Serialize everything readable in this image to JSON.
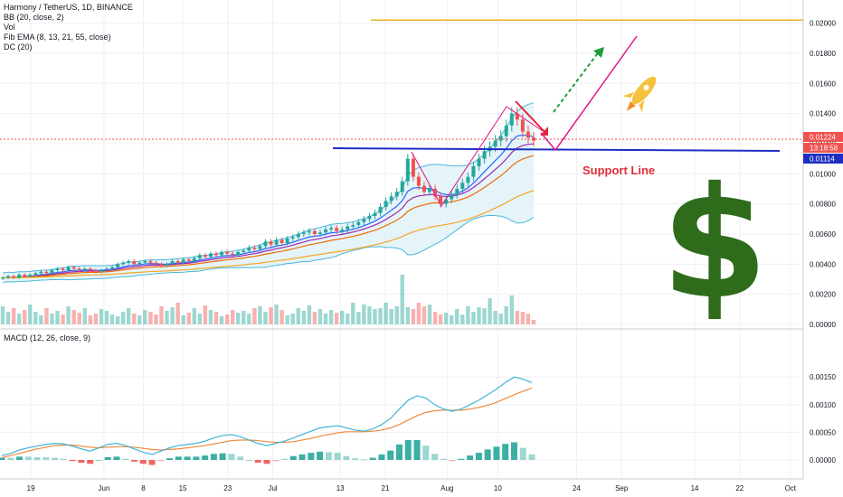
{
  "legend_main": [
    "Harmony / TetherUS, 1D, BINANCE",
    "BB (20, close, 2)",
    "Vol",
    "Fib EMA (8, 13, 21, 55, close)",
    "DC (20)"
  ],
  "legend_macd": "MACD (12, 26, close, 9)",
  "annotation": {
    "support_label": "Support Line"
  },
  "price_tags": {
    "last_price": "0.01224",
    "countdown": "13:18:58",
    "support_price": "0.01114"
  },
  "colors": {
    "bull": "#26a69a",
    "bear": "#ef5350",
    "bb": "#4bb6d8",
    "bb_fill": "#dff1f8",
    "support": "#1f2ec2",
    "resistance": "#e8b21d",
    "arrow_red": "#e3263d",
    "arrow_pink": "#e0168c",
    "arrow_green": "#1f9d39",
    "dollar": "#2e6c1b",
    "rocket": "#f5c33b",
    "macd": "#3fb4d8",
    "signal": "#f08a3c"
  },
  "icons": [
    "rocket-icon",
    "dollar-sign-icon"
  ],
  "chart_data": [
    {
      "type": "candlestick",
      "title": "Harmony / TetherUS, 1D, BINANCE",
      "ylim": [
        0.0,
        0.021
      ],
      "y_ticks": [
        "0.02000",
        "0.01800",
        "0.01600",
        "0.01400",
        "0.01200",
        "0.01000",
        "0.00800",
        "0.00600",
        "0.00400",
        "0.00200",
        "0.00000"
      ],
      "x_ticks": [
        "19",
        "Jun",
        "8",
        "15",
        "23",
        "Jul",
        "13",
        "21",
        "Aug",
        "10",
        "24",
        "Sep",
        "14",
        "22",
        "Oct"
      ],
      "x_range": [
        "2020-05-14",
        "2020-10-07"
      ],
      "levels": {
        "support": 0.0115,
        "resistance": 0.0202
      },
      "series": {
        "close": [
          0.0031,
          0.0032,
          0.0031,
          0.0033,
          0.0032,
          0.0033,
          0.0034,
          0.0035,
          0.0034,
          0.0036,
          0.0037,
          0.0036,
          0.0038,
          0.0037,
          0.0036,
          0.0037,
          0.0036,
          0.0035,
          0.0036,
          0.0037,
          0.0038,
          0.004,
          0.0041,
          0.0042,
          0.004,
          0.0041,
          0.0042,
          0.0041,
          0.004,
          0.0039,
          0.004,
          0.0042,
          0.0041,
          0.0043,
          0.0042,
          0.0044,
          0.0046,
          0.0045,
          0.0047,
          0.0046,
          0.0048,
          0.0047,
          0.0046,
          0.0048,
          0.0049,
          0.0051,
          0.005,
          0.0052,
          0.0055,
          0.0053,
          0.0056,
          0.0054,
          0.0057,
          0.0058,
          0.006,
          0.0061,
          0.0062,
          0.006,
          0.0061,
          0.0063,
          0.0064,
          0.0062,
          0.0063,
          0.0065,
          0.0066,
          0.0068,
          0.007,
          0.0072,
          0.0074,
          0.0078,
          0.0082,
          0.0085,
          0.0088,
          0.0095,
          0.011,
          0.0098,
          0.0092,
          0.0088,
          0.009,
          0.0085,
          0.008,
          0.0083,
          0.0086,
          0.009,
          0.0094,
          0.0098,
          0.0105,
          0.011,
          0.0115,
          0.0118,
          0.0122,
          0.0125,
          0.0132,
          0.014,
          0.0136,
          0.0128,
          0.0124,
          0.0122
        ],
        "volume": [
          20,
          14,
          18,
          12,
          16,
          22,
          14,
          10,
          18,
          12,
          15,
          11,
          20,
          16,
          13,
          18,
          10,
          12,
          17,
          15,
          11,
          9,
          14,
          18,
          12,
          10,
          16,
          14,
          11,
          20,
          15,
          19,
          24,
          10,
          13,
          18,
          12,
          21,
          16,
          14,
          9,
          11,
          16,
          13,
          15,
          12,
          18,
          20,
          14,
          19,
          22,
          16,
          10,
          12,
          18,
          15,
          21,
          14,
          17,
          12,
          16,
          13,
          15,
          12,
          24,
          14,
          22,
          20,
          17,
          18,
          24,
          17,
          20,
          55,
          19,
          17,
          24,
          20,
          22,
          14,
          11,
          13,
          10,
          17,
          11,
          20,
          14,
          19,
          18,
          29,
          15,
          12,
          20,
          32,
          15,
          14,
          12,
          5
        ]
      }
    },
    {
      "type": "line",
      "title": "MACD (12, 26, close, 9)",
      "ylim": [
        -0.0001,
        0.0016
      ],
      "y_ticks": [
        "0.00150",
        "0.00100",
        "0.00050",
        "0.00000"
      ],
      "series": [
        {
          "name": "MACD",
          "values": [
            8e-05,
            0.00012,
            0.00018,
            0.00022,
            0.00025,
            0.00028,
            0.0003,
            0.00029,
            0.00025,
            0.0002,
            0.00016,
            0.00022,
            0.00028,
            0.0003,
            0.00026,
            0.0002,
            0.00014,
            0.0001,
            0.00016,
            0.00022,
            0.00026,
            0.00028,
            0.0003,
            0.00034,
            0.0004,
            0.00044,
            0.00046,
            0.00042,
            0.00036,
            0.0003,
            0.00026,
            0.0003,
            0.00034,
            0.0004,
            0.00046,
            0.00052,
            0.00058,
            0.0006,
            0.00062,
            0.00058,
            0.00054,
            0.00052,
            0.00056,
            0.00064,
            0.00075,
            0.00092,
            0.00108,
            0.00116,
            0.00112,
            0.001,
            0.00092,
            0.00088,
            0.00092,
            0.001,
            0.00108,
            0.00118,
            0.00128,
            0.0014,
            0.0015,
            0.00146,
            0.0014
          ]
        },
        {
          "name": "Signal",
          "values": [
            4e-05,
            8e-05,
            0.00012,
            0.00016,
            0.0002,
            0.00023,
            0.00026,
            0.00027,
            0.00027,
            0.00025,
            0.00023,
            0.00022,
            0.00023,
            0.00024,
            0.00024,
            0.00023,
            0.00021,
            0.00019,
            0.00018,
            0.00019,
            0.0002,
            0.00022,
            0.00024,
            0.00026,
            0.00029,
            0.00032,
            0.00035,
            0.00036,
            0.00036,
            0.00035,
            0.00033,
            0.00032,
            0.00032,
            0.00033,
            0.00036,
            0.00039,
            0.00043,
            0.00046,
            0.00049,
            0.00051,
            0.00051,
            0.00051,
            0.00052,
            0.00054,
            0.00058,
            0.00064,
            0.00072,
            0.0008,
            0.00086,
            0.00089,
            0.0009,
            0.0009,
            0.0009,
            0.00092,
            0.00095,
            0.00099,
            0.00104,
            0.00111,
            0.00118,
            0.00124,
            0.0013
          ]
        }
      ]
    }
  ]
}
